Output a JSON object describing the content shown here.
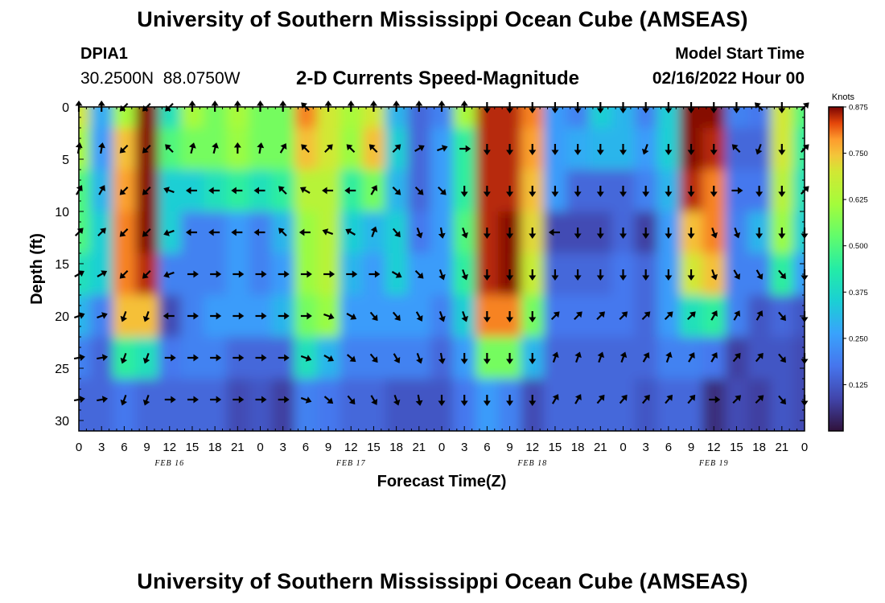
{
  "header": {
    "title": "University of Southern Mississippi Ocean Cube (AMSEAS)",
    "station": "DPIA1",
    "coords": "30.2500N  88.0750W",
    "subtitle": "2-D Currents Speed-Magnitude",
    "model_start_label": "Model Start Time",
    "model_start_value": "02/16/2022 Hour 00"
  },
  "footer": {
    "title": "University of Southern Mississippi Ocean Cube (AMSEAS)"
  },
  "chart_data": {
    "type": "heatmap",
    "title": "2-D Currents Speed-Magnitude",
    "xlabel": "Forecast Time(Z)",
    "ylabel": "Depth (ft)",
    "x_ticks": [
      "0",
      "3",
      "6",
      "9",
      "12",
      "15",
      "18",
      "21",
      "0",
      "3",
      "6",
      "9",
      "12",
      "15",
      "18",
      "21",
      "0",
      "3",
      "6",
      "9",
      "12",
      "15",
      "18",
      "21",
      "0",
      "3",
      "6",
      "9",
      "12",
      "15",
      "18",
      "21",
      "0"
    ],
    "date_labels": [
      {
        "label": "FEB 16",
        "hour": 12
      },
      {
        "label": "FEB 17",
        "hour": 36
      },
      {
        "label": "FEB 18",
        "hour": 60
      },
      {
        "label": "FEB 19",
        "hour": 84
      }
    ],
    "xlim": [
      0,
      96
    ],
    "ylim": [
      0,
      31
    ],
    "y_ticks": [
      0,
      5,
      10,
      15,
      20,
      25,
      30
    ],
    "colorbar": {
      "unit": "Knots",
      "range": [
        0,
        0.875
      ],
      "ticks": [
        "0.125",
        "0.250",
        "0.375",
        "0.500",
        "0.625",
        "0.750",
        "0.875"
      ]
    },
    "depth_levels_ft": [
      0,
      4,
      8,
      12,
      16,
      20,
      24,
      28
    ],
    "hours": [
      0,
      3,
      6,
      9,
      12,
      15,
      18,
      21,
      24,
      27,
      30,
      33,
      36,
      39,
      42,
      45,
      48,
      51,
      54,
      57,
      60,
      63,
      66,
      69,
      72,
      75,
      78,
      81,
      84,
      87,
      90,
      93,
      96
    ],
    "speed_knots": [
      [
        0.7,
        0.28,
        0.62,
        0.87,
        0.4,
        0.62,
        0.55,
        0.62,
        0.55,
        0.55,
        0.8,
        0.7,
        0.62,
        0.7,
        0.3,
        0.15,
        0.2,
        0.62,
        0.85,
        0.85,
        0.8,
        0.25,
        0.2,
        0.35,
        0.3,
        0.2,
        0.35,
        0.87,
        0.87,
        0.2,
        0.18,
        0.7,
        0.5
      ],
      [
        0.62,
        0.25,
        0.75,
        0.87,
        0.5,
        0.55,
        0.55,
        0.6,
        0.55,
        0.55,
        0.75,
        0.7,
        0.6,
        0.75,
        0.35,
        0.15,
        0.25,
        0.45,
        0.85,
        0.85,
        0.78,
        0.25,
        0.28,
        0.3,
        0.3,
        0.25,
        0.35,
        0.87,
        0.85,
        0.15,
        0.15,
        0.7,
        0.45
      ],
      [
        0.5,
        0.3,
        0.78,
        0.87,
        0.35,
        0.35,
        0.4,
        0.45,
        0.4,
        0.45,
        0.65,
        0.65,
        0.45,
        0.55,
        0.3,
        0.15,
        0.25,
        0.45,
        0.85,
        0.85,
        0.75,
        0.25,
        0.15,
        0.15,
        0.15,
        0.2,
        0.3,
        0.85,
        0.8,
        0.18,
        0.18,
        0.65,
        0.4
      ],
      [
        0.5,
        0.35,
        0.8,
        0.87,
        0.35,
        0.2,
        0.2,
        0.25,
        0.2,
        0.3,
        0.6,
        0.65,
        0.35,
        0.3,
        0.35,
        0.18,
        0.25,
        0.5,
        0.85,
        0.87,
        0.72,
        0.1,
        0.1,
        0.1,
        0.15,
        0.08,
        0.25,
        0.75,
        0.8,
        0.2,
        0.3,
        0.6,
        0.35
      ],
      [
        0.4,
        0.35,
        0.8,
        0.85,
        0.2,
        0.2,
        0.2,
        0.25,
        0.2,
        0.25,
        0.6,
        0.65,
        0.3,
        0.25,
        0.35,
        0.25,
        0.25,
        0.45,
        0.85,
        0.87,
        0.68,
        0.15,
        0.15,
        0.15,
        0.18,
        0.15,
        0.25,
        0.7,
        0.75,
        0.2,
        0.2,
        0.45,
        0.25
      ],
      [
        0.3,
        0.2,
        0.75,
        0.75,
        0.1,
        0.2,
        0.25,
        0.25,
        0.25,
        0.3,
        0.55,
        0.6,
        0.25,
        0.25,
        0.25,
        0.25,
        0.2,
        0.35,
        0.8,
        0.8,
        0.55,
        0.18,
        0.18,
        0.18,
        0.18,
        0.15,
        0.25,
        0.4,
        0.45,
        0.2,
        0.12,
        0.15,
        0.12
      ],
      [
        0.2,
        0.15,
        0.45,
        0.4,
        0.18,
        0.2,
        0.2,
        0.15,
        0.15,
        0.15,
        0.4,
        0.3,
        0.2,
        0.2,
        0.2,
        0.2,
        0.15,
        0.25,
        0.55,
        0.55,
        0.3,
        0.15,
        0.15,
        0.15,
        0.15,
        0.15,
        0.2,
        0.2,
        0.18,
        0.08,
        0.12,
        0.12,
        0.1
      ],
      [
        0.15,
        0.15,
        0.18,
        0.15,
        0.15,
        0.15,
        0.15,
        0.1,
        0.12,
        0.08,
        0.2,
        0.18,
        0.15,
        0.15,
        0.12,
        0.12,
        0.12,
        0.18,
        0.25,
        0.2,
        0.1,
        0.15,
        0.15,
        0.15,
        0.15,
        0.12,
        0.15,
        0.15,
        0.05,
        0.1,
        0.08,
        0.12,
        0.1
      ]
    ],
    "arrow_angle_deg": [
      [
        0,
        0,
        225,
        225,
        225,
        0,
        0,
        0,
        0,
        0,
        315,
        0,
        0,
        0,
        0,
        0,
        0,
        0,
        180,
        180,
        180,
        180,
        180,
        180,
        180,
        180,
        180,
        180,
        180,
        180,
        315,
        180,
        45
      ],
      [
        10,
        10,
        225,
        225,
        315,
        15,
        15,
        0,
        10,
        30,
        315,
        45,
        315,
        315,
        45,
        60,
        70,
        90,
        180,
        180,
        180,
        180,
        180,
        180,
        180,
        200,
        180,
        180,
        180,
        315,
        200,
        180,
        45
      ],
      [
        30,
        30,
        225,
        225,
        290,
        270,
        270,
        270,
        270,
        315,
        300,
        270,
        270,
        30,
        135,
        135,
        135,
        180,
        180,
        180,
        180,
        180,
        180,
        180,
        180,
        180,
        180,
        180,
        180,
        90,
        180,
        180,
        45
      ],
      [
        45,
        45,
        225,
        225,
        250,
        270,
        270,
        270,
        270,
        315,
        270,
        290,
        300,
        20,
        140,
        160,
        170,
        160,
        180,
        180,
        180,
        270,
        180,
        180,
        180,
        180,
        180,
        180,
        160,
        160,
        180,
        180,
        180
      ],
      [
        60,
        60,
        225,
        225,
        250,
        90,
        90,
        90,
        90,
        90,
        90,
        90,
        90,
        90,
        120,
        135,
        160,
        160,
        180,
        180,
        180,
        180,
        180,
        180,
        180,
        180,
        180,
        180,
        160,
        150,
        150,
        140,
        180
      ],
      [
        70,
        70,
        200,
        200,
        270,
        90,
        90,
        90,
        90,
        90,
        90,
        110,
        120,
        140,
        140,
        150,
        160,
        160,
        180,
        180,
        180,
        45,
        45,
        45,
        45,
        45,
        45,
        45,
        30,
        30,
        30,
        140,
        180
      ],
      [
        80,
        80,
        200,
        200,
        90,
        90,
        90,
        90,
        90,
        90,
        110,
        120,
        130,
        140,
        150,
        160,
        170,
        180,
        180,
        180,
        180,
        20,
        20,
        20,
        20,
        30,
        20,
        30,
        30,
        40,
        40,
        140,
        180
      ],
      [
        80,
        80,
        200,
        200,
        90,
        90,
        90,
        90,
        90,
        90,
        110,
        130,
        140,
        150,
        160,
        170,
        180,
        180,
        180,
        180,
        180,
        30,
        30,
        40,
        40,
        40,
        40,
        40,
        90,
        45,
        45,
        140,
        180
      ]
    ]
  }
}
